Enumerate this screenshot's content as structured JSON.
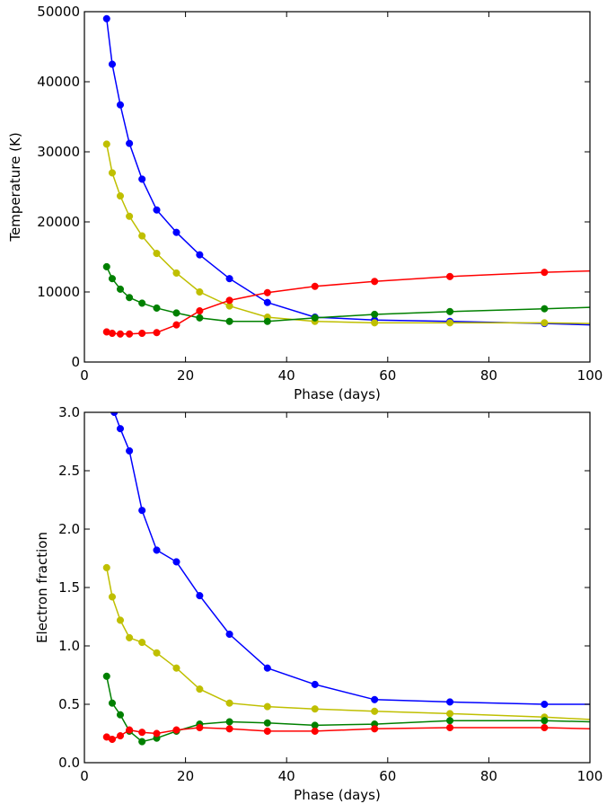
{
  "chart_data": [
    {
      "type": "line",
      "xlabel": "Phase (days)",
      "ylabel": "Temperature (K)",
      "xlim": [
        0,
        100
      ],
      "ylim": [
        0,
        50000
      ],
      "xticks": [
        "0",
        "20",
        "40",
        "60",
        "80",
        "100"
      ],
      "yticks": [
        "0",
        "10000",
        "20000",
        "30000",
        "40000",
        "50000"
      ],
      "grid": false,
      "series": [
        {
          "color": "#0000ff",
          "x": [
            4.4,
            5.5,
            7.1,
            8.9,
            11.4,
            14.3,
            18.2,
            22.8,
            28.7,
            36.2,
            45.6,
            57.4,
            72.3,
            91.0,
            100.0
          ],
          "y": [
            49000,
            42500,
            36700,
            31200,
            26100,
            21700,
            18500,
            15300,
            11900,
            8500,
            6400,
            6000,
            5800,
            5500,
            5300
          ]
        },
        {
          "color": "#bfbf00",
          "x": [
            4.4,
            5.5,
            7.1,
            8.9,
            11.4,
            14.3,
            18.2,
            22.8,
            28.7,
            36.2,
            45.6,
            57.4,
            72.3,
            91.0,
            100.0
          ],
          "y": [
            31100,
            27000,
            23700,
            20800,
            18000,
            15500,
            12700,
            10000,
            8000,
            6400,
            5800,
            5600,
            5600,
            5600,
            5500
          ]
        },
        {
          "color": "#008000",
          "x": [
            4.4,
            5.5,
            7.1,
            8.9,
            11.4,
            14.3,
            18.2,
            22.8,
            28.7,
            36.2,
            45.6,
            57.4,
            72.3,
            91.0,
            100.0
          ],
          "y": [
            13600,
            11900,
            10400,
            9200,
            8400,
            7700,
            7000,
            6300,
            5800,
            5800,
            6300,
            6800,
            7200,
            7600,
            7800
          ]
        },
        {
          "color": "#ff0000",
          "x": [
            4.4,
            5.5,
            7.1,
            8.9,
            11.4,
            14.3,
            18.2,
            22.8,
            28.7,
            36.2,
            45.6,
            57.4,
            72.3,
            91.0,
            100.0
          ],
          "y": [
            4300,
            4100,
            4000,
            4000,
            4100,
            4200,
            5300,
            7300,
            8800,
            9900,
            10800,
            11500,
            12200,
            12800,
            13000
          ]
        }
      ]
    },
    {
      "type": "line",
      "xlabel": "Phase (days)",
      "ylabel": "Electron fraction",
      "xlim": [
        0,
        100
      ],
      "ylim": [
        0.0,
        3.0
      ],
      "xticks": [
        "0",
        "20",
        "40",
        "60",
        "80",
        "100"
      ],
      "yticks": [
        "0.0",
        "0.5",
        "1.0",
        "1.5",
        "2.0",
        "2.5",
        "3.0"
      ],
      "grid": false,
      "series": [
        {
          "color": "#0000ff",
          "x": [
            5.9,
            7.1,
            8.9,
            11.4,
            14.3,
            18.2,
            22.8,
            28.7,
            36.2,
            45.6,
            57.4,
            72.3,
            91.0,
            100.0
          ],
          "y": [
            3.0,
            2.86,
            2.67,
            2.16,
            1.82,
            1.72,
            1.43,
            1.1,
            0.81,
            0.67,
            0.54,
            0.52,
            0.5,
            0.5
          ]
        },
        {
          "color": "#bfbf00",
          "x": [
            4.4,
            5.5,
            7.1,
            8.9,
            11.4,
            14.3,
            18.2,
            22.8,
            28.7,
            36.2,
            45.6,
            57.4,
            72.3,
            91.0,
            100.0
          ],
          "y": [
            1.67,
            1.42,
            1.22,
            1.07,
            1.03,
            0.94,
            0.81,
            0.63,
            0.51,
            0.48,
            0.46,
            0.44,
            0.42,
            0.39,
            0.37
          ]
        },
        {
          "color": "#008000",
          "x": [
            4.4,
            5.5,
            7.1,
            8.9,
            11.4,
            14.3,
            18.2,
            22.8,
            28.7,
            36.2,
            45.6,
            57.4,
            72.3,
            91.0,
            100.0
          ],
          "y": [
            0.74,
            0.51,
            0.41,
            0.27,
            0.18,
            0.21,
            0.27,
            0.33,
            0.35,
            0.34,
            0.32,
            0.33,
            0.36,
            0.36,
            0.35
          ]
        },
        {
          "color": "#ff0000",
          "x": [
            4.4,
            5.5,
            7.1,
            8.9,
            11.4,
            14.3,
            18.2,
            22.8,
            28.7,
            36.2,
            45.6,
            57.4,
            72.3,
            91.0,
            100.0
          ],
          "y": [
            0.22,
            0.2,
            0.23,
            0.28,
            0.26,
            0.25,
            0.28,
            0.3,
            0.29,
            0.27,
            0.27,
            0.29,
            0.3,
            0.3,
            0.29
          ]
        }
      ]
    }
  ]
}
